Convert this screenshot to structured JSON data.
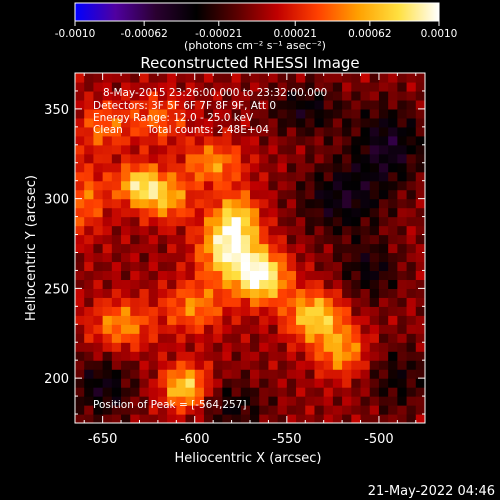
{
  "chart_data": {
    "type": "heatmap",
    "title": "Reconstructed RHESSI Image",
    "xlabel": "Heliocentric X (arcsec)",
    "ylabel": "Heliocentric Y (arcsec)",
    "xlim": [
      -665,
      -475
    ],
    "ylim": [
      175,
      370
    ],
    "xticks": [
      -650,
      -600,
      -550,
      -500
    ],
    "xtick_labels": [
      "-650",
      "-600",
      "-550",
      "-500"
    ],
    "yticks": [
      200,
      250,
      300,
      350
    ],
    "ytick_labels": [
      "200",
      "250",
      "300",
      "350"
    ],
    "colorbar": {
      "min": -0.001,
      "max": 0.001,
      "ticks": [
        -0.001,
        -0.00062,
        -0.00021,
        0.00021,
        0.00062,
        0.001
      ],
      "tick_labels": [
        "-0.0010",
        "-0.00062",
        "-0.00021",
        "0.00021",
        "0.00062",
        "0.0010"
      ],
      "units_label": "(photons cm⁻² s⁻¹ asec⁻²)",
      "colors": [
        "#0000ff",
        "#5000a0",
        "#2a0030",
        "#000000",
        "#5a0000",
        "#c00000",
        "#ff4000",
        "#ffa000",
        "#ffe040",
        "#ffffff"
      ]
    },
    "annotations": [
      "8-May-2015 23:26:00.000 to 23:32:00.000",
      "Detectors: 3F 5F 6F 7F 8F 9F, Att 0",
      "Energy Range: 12.0 - 25.0 keV",
      "Clean",
      "Total counts: 2.48E+04"
    ],
    "peak_label": "Position of Peak = [-564,257]",
    "peak": [
      -564,
      257
    ],
    "sources": [
      {
        "x": -564,
        "y": 257,
        "amp": 0.00098,
        "sx": 10,
        "sy": 10
      },
      {
        "x": -582,
        "y": 272,
        "amp": 0.00085,
        "sx": 11,
        "sy": 12
      },
      {
        "x": -577,
        "y": 290,
        "amp": 0.0006,
        "sx": 9,
        "sy": 10
      },
      {
        "x": -630,
        "y": 308,
        "amp": 0.00075,
        "sx": 9,
        "sy": 8
      },
      {
        "x": -615,
        "y": 300,
        "amp": 0.00055,
        "sx": 10,
        "sy": 9
      },
      {
        "x": -590,
        "y": 320,
        "amp": 0.00052,
        "sx": 12,
        "sy": 9
      },
      {
        "x": -535,
        "y": 235,
        "amp": 0.00075,
        "sx": 11,
        "sy": 10
      },
      {
        "x": -520,
        "y": 215,
        "amp": 0.00055,
        "sx": 10,
        "sy": 10
      },
      {
        "x": -605,
        "y": 195,
        "amp": 0.00078,
        "sx": 9,
        "sy": 9
      },
      {
        "x": -640,
        "y": 230,
        "amp": 0.00052,
        "sx": 12,
        "sy": 10
      },
      {
        "x": -660,
        "y": 300,
        "amp": 0.00042,
        "sx": 9,
        "sy": 14
      },
      {
        "x": -600,
        "y": 240,
        "amp": 0.00048,
        "sx": 12,
        "sy": 10
      },
      {
        "x": -650,
        "y": 340,
        "amp": 0.0004,
        "sx": 10,
        "sy": 10
      },
      {
        "x": -620,
        "y": 345,
        "amp": 0.00038,
        "sx": 12,
        "sy": 10
      },
      {
        "x": -520,
        "y": 300,
        "amp": -0.00042,
        "sx": 16,
        "sy": 14
      },
      {
        "x": -495,
        "y": 330,
        "amp": -0.00046,
        "sx": 14,
        "sy": 16
      },
      {
        "x": -505,
        "y": 260,
        "amp": -0.00034,
        "sx": 12,
        "sy": 12
      },
      {
        "x": -540,
        "y": 350,
        "amp": -0.00036,
        "sx": 14,
        "sy": 10
      },
      {
        "x": -650,
        "y": 195,
        "amp": -0.0004,
        "sx": 12,
        "sy": 12
      },
      {
        "x": -580,
        "y": 185,
        "amp": -0.00032,
        "sx": 14,
        "sy": 10
      },
      {
        "x": -490,
        "y": 200,
        "amp": -0.0003,
        "sx": 12,
        "sy": 14
      }
    ]
  },
  "footer": {
    "timestamp": "21-May-2022 04:46"
  }
}
